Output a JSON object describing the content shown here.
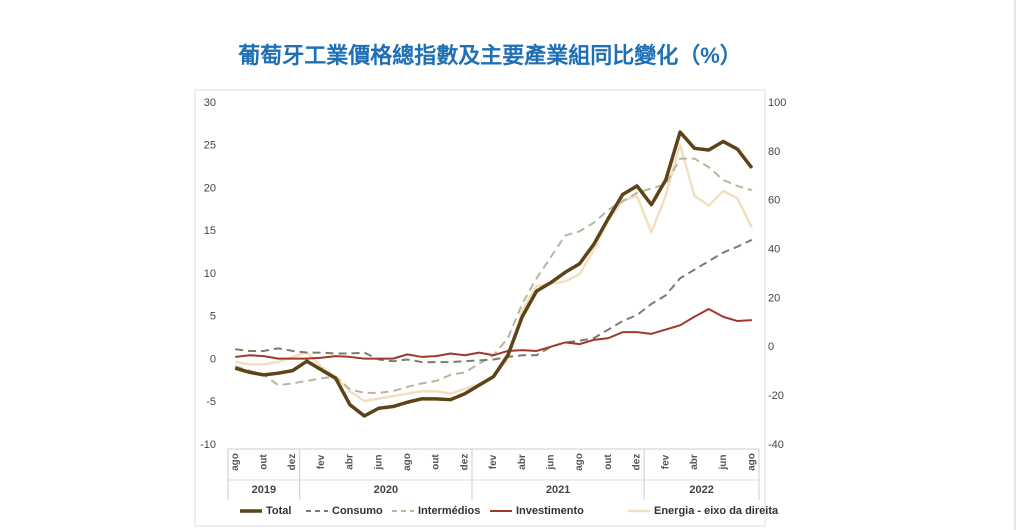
{
  "chart_data": {
    "type": "line",
    "title": "葡萄牙工業價格總指數及主要產業組同比變化（%）",
    "categories": [
      "ago",
      null,
      "out",
      null,
      "dez",
      null,
      "fev",
      null,
      "abr",
      null,
      "jun",
      null,
      "ago",
      null,
      "out",
      null,
      "dez",
      null,
      "fev",
      null,
      "abr",
      null,
      "jun",
      null,
      "ago",
      null,
      "out",
      null,
      "dez",
      null,
      "fev",
      null,
      "abr",
      null,
      "jun",
      null,
      "ago"
    ],
    "groups": [
      {
        "label": "2019",
        "span": 5
      },
      {
        "label": "2020",
        "span": 12
      },
      {
        "label": "2021",
        "span": 12
      },
      {
        "label": "2022",
        "span": 8
      }
    ],
    "ylim": [
      -10,
      30
    ],
    "yticks": [
      -10,
      -5,
      0,
      5,
      10,
      15,
      20,
      25,
      30
    ],
    "y2lim": [
      -40,
      100
    ],
    "y2ticks": [
      -40,
      -20,
      0,
      20,
      40,
      60,
      80,
      100
    ],
    "legend": "bottom",
    "series": [
      {
        "name": "Total",
        "color": "#5c4318",
        "dash": "solid",
        "width": 3.5,
        "values": [
          -1.0,
          -1.5,
          -1.8,
          -1.6,
          -1.3,
          -0.2,
          -1.2,
          -2.2,
          -5.3,
          -6.6,
          -5.7,
          -5.5,
          -5.0,
          -4.6,
          -4.6,
          -4.7,
          -4.0,
          -3.0,
          -2.0,
          0.5,
          5.0,
          8.0,
          9.0,
          10.2,
          11.2,
          13.5,
          16.5,
          19.3,
          20.3,
          18.1,
          21.0,
          26.6,
          24.7,
          24.5,
          25.5,
          24.6,
          22.4
        ]
      },
      {
        "name": "Consumo",
        "color": "#7f7b6b",
        "dash": "dashed",
        "width": 2,
        "values": [
          1.2,
          1.0,
          1.0,
          1.3,
          1.0,
          0.8,
          0.8,
          0.7,
          0.7,
          0.8,
          0.0,
          -0.2,
          0,
          -0.3,
          -0.3,
          -0.3,
          -0.2,
          -0.1,
          0.0,
          0.3,
          0.5,
          0.5,
          1.5,
          2.0,
          2.2,
          2.5,
          3.5,
          4.5,
          5.2,
          6.5,
          7.5,
          9.5,
          10.5,
          11.5,
          12.5,
          13.2,
          14.0
        ]
      },
      {
        "name": "Intermédios",
        "color": "#b5b89c",
        "dash": "dashed",
        "width": 2,
        "values": [
          -0.8,
          -1.3,
          -1.8,
          -3.0,
          -2.8,
          -2.5,
          -2.2,
          -2.0,
          -3.5,
          -3.9,
          -3.9,
          -3.7,
          -3.2,
          -2.8,
          -2.5,
          -1.8,
          -1.5,
          -0.5,
          0.5,
          2.5,
          6.5,
          9.5,
          12.0,
          14.5,
          15.0,
          16.0,
          17.5,
          18.5,
          19.5,
          20.0,
          20.5,
          23.5,
          23.5,
          22.5,
          21.0,
          20.3,
          19.8
        ]
      },
      {
        "name": "Investimento",
        "color": "#a0392b",
        "dash": "solid",
        "width": 2,
        "values": [
          0.3,
          0.5,
          0.4,
          0.1,
          0.1,
          0.1,
          0.2,
          0.4,
          0.3,
          0.1,
          0.1,
          0.1,
          0.6,
          0.3,
          0.4,
          0.7,
          0.5,
          0.8,
          0.5,
          1.0,
          1.1,
          1.0,
          1.5,
          2.0,
          1.8,
          2.3,
          2.5,
          3.2,
          3.2,
          3.0,
          3.5,
          4.0,
          5.0,
          5.9,
          5.0,
          4.5,
          4.6
        ]
      },
      {
        "name": "Energia - eixo da direita",
        "color": "#f3dfbf",
        "dash": "solid",
        "width": 2.5,
        "axis": "y2",
        "values": [
          -6,
          -7,
          -7,
          -6,
          -4,
          -2,
          -8,
          -12,
          -18,
          -22,
          -21,
          -20,
          -19,
          -18,
          -18,
          -19,
          -17,
          -15,
          -12,
          -5,
          15,
          25,
          26,
          27,
          30,
          40,
          52,
          60,
          62,
          47,
          62,
          83,
          62,
          58,
          64,
          61,
          49
        ]
      }
    ]
  }
}
